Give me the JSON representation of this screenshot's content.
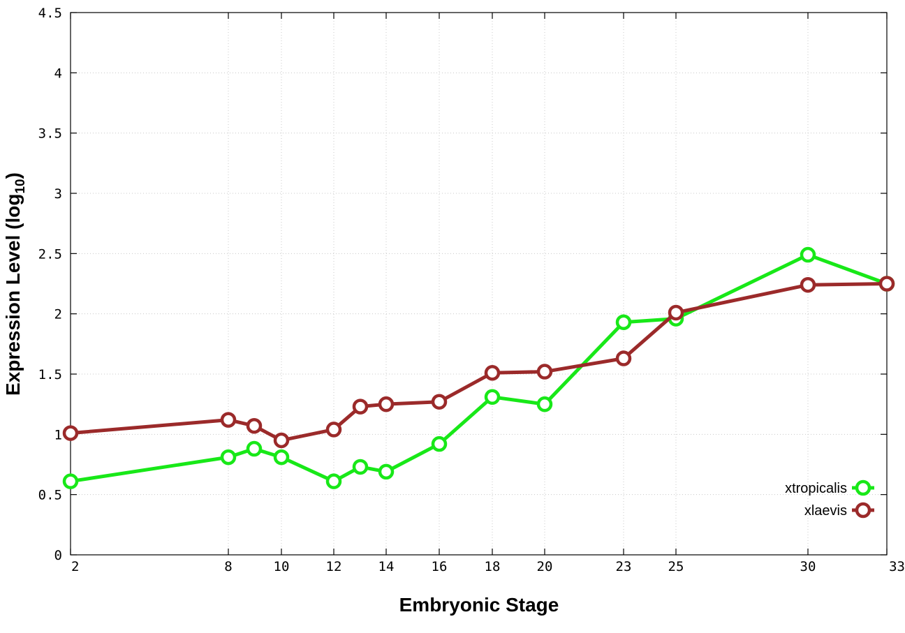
{
  "chart_data": {
    "type": "line",
    "xlabel": "Embryonic Stage",
    "ylabel_main": "Expression Level (log",
    "ylabel_sub": "10",
    "ylabel_close": ")",
    "xlim": [
      2,
      33
    ],
    "ylim": [
      0,
      4.5
    ],
    "x_axis_scale": "categorical-stages",
    "x_ticks": [
      "2",
      "8",
      "10",
      "12",
      "14",
      "16",
      "18",
      "20",
      "23",
      "25",
      "30",
      "33"
    ],
    "y_ticks": [
      "0",
      "0.5",
      "1",
      "1.5",
      "2",
      "2.5",
      "3",
      "3.5",
      "4",
      "4.5"
    ],
    "grid": true,
    "legend_position": "bottom-right",
    "x": [
      2,
      8,
      9,
      10,
      12,
      13,
      14,
      16,
      18,
      20,
      23,
      25,
      30,
      33
    ],
    "series": [
      {
        "name": "xtropicalis",
        "color": "#18e818",
        "values": [
          0.61,
          0.81,
          0.88,
          0.81,
          0.61,
          0.73,
          0.69,
          0.92,
          1.31,
          1.25,
          1.93,
          1.96,
          2.49,
          2.25
        ]
      },
      {
        "name": "xlaevis",
        "color": "#9b2a2a",
        "values": [
          1.01,
          1.12,
          1.07,
          0.95,
          1.04,
          1.23,
          1.25,
          1.27,
          1.51,
          1.52,
          1.63,
          2.01,
          2.24,
          2.25
        ]
      }
    ]
  }
}
